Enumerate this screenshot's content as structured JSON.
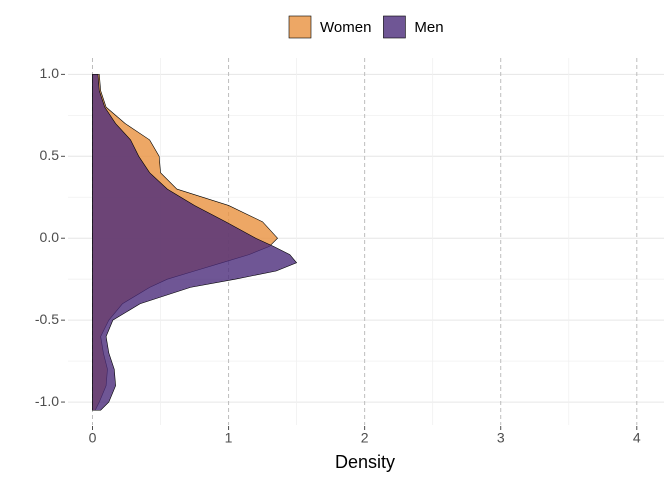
{
  "chart_data": {
    "type": "density",
    "x_label": "Density",
    "y": [
      1.0,
      0.9,
      0.8,
      0.7,
      0.6,
      0.5,
      0.4,
      0.3,
      0.2,
      0.1,
      0.0,
      -0.05,
      -0.1,
      -0.15,
      -0.2,
      -0.25,
      -0.3,
      -0.4,
      -0.5,
      -0.6,
      -0.7,
      -0.8,
      -0.9,
      -1.0,
      -1.05
    ],
    "series": [
      {
        "name": "Women",
        "color": "#e8913f",
        "values": [
          0.05,
          0.06,
          0.1,
          0.24,
          0.42,
          0.49,
          0.5,
          0.62,
          1.0,
          1.25,
          1.36,
          1.3,
          1.15,
          0.95,
          0.75,
          0.55,
          0.42,
          0.22,
          0.12,
          0.06,
          0.08,
          0.11,
          0.1,
          0.05,
          0.02
        ]
      },
      {
        "name": "Men",
        "color": "#4b2c7a",
        "values": [
          0.04,
          0.05,
          0.09,
          0.17,
          0.28,
          0.34,
          0.42,
          0.55,
          0.75,
          0.98,
          1.2,
          1.33,
          1.45,
          1.5,
          1.35,
          1.05,
          0.72,
          0.35,
          0.15,
          0.1,
          0.12,
          0.16,
          0.17,
          0.12,
          0.06
        ]
      }
    ],
    "xlim": [
      -0.18,
      4.2
    ],
    "xticks": [
      0,
      1,
      2,
      3,
      4
    ],
    "ylim": [
      -1.14,
      1.1
    ],
    "yticks": [
      {
        "value": -1.0,
        "label": "-1.0"
      },
      -0.5,
      {
        "value": 0.0,
        "label": "0.0"
      },
      0.5,
      {
        "value": 1.0,
        "label": "1.0"
      }
    ],
    "grid": true,
    "legend": "top"
  }
}
